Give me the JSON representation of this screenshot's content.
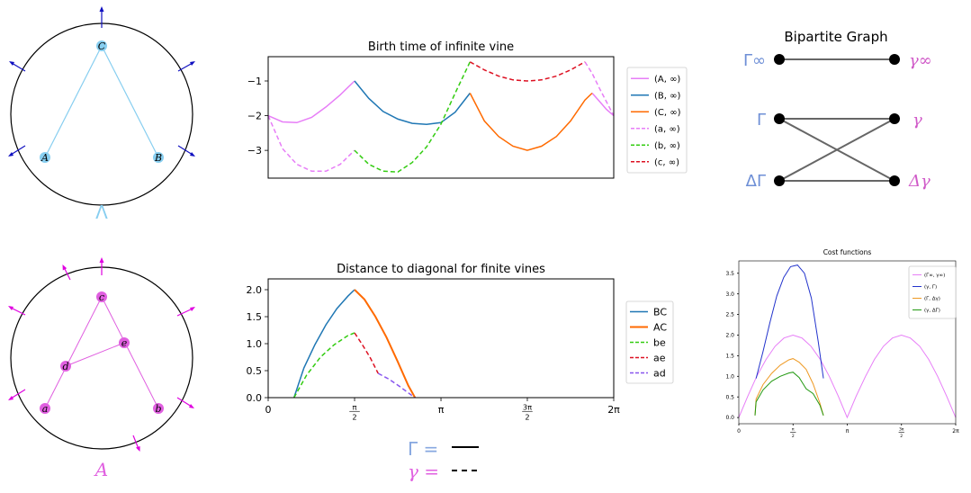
{
  "colors": {
    "blue_light": "#87cef0",
    "blue_arrow": "#1010c0",
    "magenta": "#e05fe0",
    "magenta_arrow": "#e000e0",
    "tab_blue": "#1f77b4",
    "tab_orange": "#ff6a00",
    "violet": "#e77ef7",
    "green": "#33cc11",
    "red": "#dd1122",
    "purple_dash": "#8855ee",
    "graph_blue": "#6e8fd6",
    "graph_pink": "#d05ac8"
  },
  "top_complex": {
    "caption": "Λ",
    "vertices": [
      "A",
      "B",
      "C"
    ]
  },
  "bottom_complex": {
    "caption": "A",
    "vertices": [
      "a",
      "b",
      "c",
      "d",
      "e"
    ]
  },
  "legend_note": {
    "gamma_cap": "Γ =",
    "gamma_low": "γ ="
  },
  "graph": {
    "title": "Bipartite Graph",
    "left": [
      "Γ∞",
      "Γ",
      "ΔΓ"
    ],
    "right": [
      "γ∞",
      "γ",
      "Δγ"
    ]
  },
  "chart_data": [
    {
      "id": "birth",
      "type": "line",
      "title": "Birth time of infinite vine",
      "xlim": [
        0,
        6.283
      ],
      "ylim": [
        -3.8,
        -0.3
      ],
      "yticks": [
        -1,
        -2,
        -3
      ],
      "ytick_labels": [
        "−1",
        "−2",
        "−3"
      ],
      "xtick_labels": [],
      "series": [
        {
          "name": "(A, ∞)",
          "color": "#e77ef7",
          "dash": false,
          "segments": [
            {
              "x": [
                0,
                0.26,
                0.52,
                0.79,
                1.05,
                1.31,
                1.57
              ],
              "y": [
                -2.0,
                -2.18,
                -2.2,
                -2.05,
                -1.75,
                -1.4,
                -1.0
              ]
            },
            {
              "x": [
                5.89,
                6.02,
                6.15,
                6.283
              ],
              "y": [
                -1.35,
                -1.58,
                -1.82,
                -2.0
              ]
            }
          ]
        },
        {
          "name": "(B, ∞)",
          "color": "#1f77b4",
          "dash": false,
          "segments": [
            {
              "x": [
                1.57,
                1.83,
                2.09,
                2.36,
                2.62,
                2.88,
                3.14,
                3.4,
                3.67
              ],
              "y": [
                -1.0,
                -1.5,
                -1.88,
                -2.1,
                -2.22,
                -2.25,
                -2.2,
                -1.9,
                -1.35
              ]
            }
          ]
        },
        {
          "name": "(C, ∞)",
          "color": "#ff6a00",
          "dash": false,
          "segments": [
            {
              "x": [
                3.67,
                3.93,
                4.19,
                4.45,
                4.71,
                4.97,
                5.24,
                5.5,
                5.76,
                5.89
              ],
              "y": [
                -1.35,
                -2.15,
                -2.6,
                -2.88,
                -3.0,
                -2.88,
                -2.6,
                -2.15,
                -1.55,
                -1.35
              ]
            }
          ]
        },
        {
          "name": "(a, ∞)",
          "color": "#e77ef7",
          "dash": true,
          "segments": [
            {
              "x": [
                0,
                0.26,
                0.52,
                0.79,
                1.05,
                1.31,
                1.57
              ],
              "y": [
                -2.0,
                -2.95,
                -3.4,
                -3.6,
                -3.6,
                -3.4,
                -3.0
              ]
            },
            {
              "x": [
                5.76,
                5.89,
                6.02,
                6.15,
                6.283
              ],
              "y": [
                -0.45,
                -0.78,
                -1.2,
                -1.6,
                -2.0
              ]
            }
          ]
        },
        {
          "name": "(b, ∞)",
          "color": "#33cc11",
          "dash": true,
          "segments": [
            {
              "x": [
                1.57,
                1.83,
                2.09,
                2.36,
                2.62,
                2.88,
                3.14,
                3.4,
                3.67
              ],
              "y": [
                -3.0,
                -3.4,
                -3.6,
                -3.62,
                -3.35,
                -2.9,
                -2.25,
                -1.35,
                -0.45
              ]
            }
          ]
        },
        {
          "name": "(c, ∞)",
          "color": "#dd1122",
          "dash": true,
          "segments": [
            {
              "x": [
                3.67,
                3.93,
                4.19,
                4.45,
                4.71,
                4.97,
                5.24,
                5.5,
                5.76
              ],
              "y": [
                -0.45,
                -0.68,
                -0.86,
                -0.97,
                -1.0,
                -0.97,
                -0.86,
                -0.68,
                -0.45
              ]
            }
          ]
        }
      ]
    },
    {
      "id": "distance",
      "type": "line",
      "title": "Distance to diagonal for finite vines",
      "xlim": [
        0,
        6.283
      ],
      "ylim": [
        0,
        2.2
      ],
      "yticks": [
        0.0,
        0.5,
        1.0,
        1.5,
        2.0
      ],
      "ytick_labels": [
        "0.0",
        "0.5",
        "1.0",
        "1.5",
        "2.0"
      ],
      "xticks": [
        0,
        1.571,
        3.142,
        4.712,
        6.283
      ],
      "xtick_labels": [
        "0",
        "π/2",
        "π",
        "3π/2",
        "2π"
      ],
      "series": [
        {
          "name": "BC",
          "color": "#1f77b4",
          "dash": false,
          "segments": [
            {
              "x": [
                0.47,
                0.65,
                0.85,
                1.05,
                1.25,
                1.45,
                1.57
              ],
              "y": [
                0.0,
                0.55,
                0.98,
                1.35,
                1.65,
                1.88,
                2.0
              ]
            }
          ]
        },
        {
          "name": "AC",
          "color": "#ff6a00",
          "dash": false,
          "thick": true,
          "segments": [
            {
              "x": [
                1.57,
                1.75,
                1.95,
                2.15,
                2.35,
                2.55,
                2.67
              ],
              "y": [
                2.0,
                1.82,
                1.5,
                1.12,
                0.68,
                0.22,
                0.0
              ]
            }
          ]
        },
        {
          "name": "be",
          "color": "#33cc11",
          "dash": true,
          "segments": [
            {
              "x": [
                0.47,
                0.7,
                0.95,
                1.2,
                1.45,
                1.57
              ],
              "y": [
                0.0,
                0.42,
                0.75,
                0.98,
                1.15,
                1.2
              ]
            }
          ]
        },
        {
          "name": "ae",
          "color": "#dd1122",
          "dash": true,
          "segments": [
            {
              "x": [
                1.57,
                1.7,
                1.85,
                2.0
              ],
              "y": [
                1.2,
                1.0,
                0.75,
                0.45
              ]
            }
          ]
        },
        {
          "name": "ad",
          "color": "#8855ee",
          "dash": true,
          "segments": [
            {
              "x": [
                2.0,
                2.2,
                2.4,
                2.6,
                2.67
              ],
              "y": [
                0.45,
                0.34,
                0.2,
                0.05,
                0.0
              ]
            }
          ]
        }
      ]
    },
    {
      "id": "cost",
      "type": "line",
      "title": "Cost functions",
      "xlim": [
        0,
        6.283
      ],
      "ylim": [
        -0.15,
        3.8
      ],
      "yticks": [
        0.0,
        0.5,
        1.0,
        1.5,
        2.0,
        2.5,
        3.0,
        3.5
      ],
      "ytick_labels": [
        "0.0",
        "0.5",
        "1.0",
        "1.5",
        "2.0",
        "2.5",
        "3.0",
        "3.5"
      ],
      "xticks": [
        0,
        1.571,
        3.142,
        4.712,
        6.283
      ],
      "xtick_labels": [
        "0",
        "π/2",
        "π",
        "3π/2",
        "2π"
      ],
      "series": [
        {
          "name": "(Γ∞, γ∞)",
          "color": "#e77ef7",
          "dash": false,
          "segments": [
            {
              "x": [
                0,
                0.26,
                0.52,
                0.79,
                1.05,
                1.31,
                1.57,
                1.83,
                2.09,
                2.36,
                2.62,
                2.88,
                3.14,
                3.4,
                3.67,
                3.93,
                4.19,
                4.45,
                4.71,
                4.97,
                5.24,
                5.5,
                5.76,
                6.02,
                6.283
              ],
              "y": [
                0.0,
                0.52,
                1.0,
                1.41,
                1.73,
                1.93,
                2.0,
                1.93,
                1.73,
                1.41,
                1.0,
                0.52,
                0.0,
                0.52,
                1.0,
                1.41,
                1.73,
                1.93,
                2.0,
                1.93,
                1.73,
                1.41,
                1.0,
                0.52,
                0.0
              ]
            }
          ]
        },
        {
          "name": "(γ, Γ)",
          "color": "#2233cc",
          "dash": false,
          "segments": [
            {
              "x": [
                0.5,
                0.7,
                0.9,
                1.1,
                1.3,
                1.5,
                1.7,
                1.9,
                2.1,
                2.3,
                2.45
              ],
              "y": [
                0.95,
                1.6,
                2.3,
                2.95,
                3.4,
                3.66,
                3.7,
                3.5,
                2.9,
                1.85,
                0.95
              ]
            }
          ]
        },
        {
          "name": "(Γ, Δγ)",
          "color": "#ee9922",
          "dash": false,
          "segments": [
            {
              "x": [
                0.47,
                0.5,
                0.7,
                0.95,
                1.2,
                1.45,
                1.57,
                1.75,
                1.95,
                2.15,
                2.35,
                2.45
              ],
              "y": [
                0.05,
                0.45,
                0.8,
                1.07,
                1.27,
                1.4,
                1.43,
                1.34,
                1.17,
                0.82,
                0.35,
                0.05
              ]
            }
          ]
        },
        {
          "name": "(γ, ΔΓ)",
          "color": "#229911",
          "dash": false,
          "segments": [
            {
              "x": [
                0.47,
                0.5,
                0.7,
                0.95,
                1.2,
                1.45,
                1.57,
                1.75,
                1.95,
                2.15,
                2.35,
                2.45
              ],
              "y": [
                0.05,
                0.38,
                0.67,
                0.88,
                1.0,
                1.08,
                1.1,
                0.97,
                0.7,
                0.58,
                0.3,
                0.05
              ]
            }
          ]
        }
      ]
    }
  ]
}
